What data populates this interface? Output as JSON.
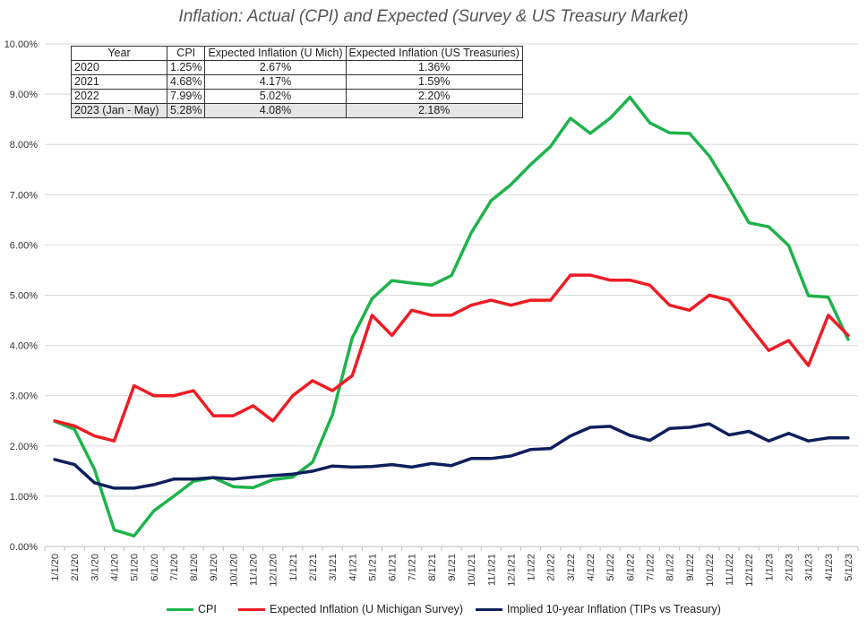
{
  "title": "Inflation: Actual (CPI) and Expected (Survey & US Treasury Market)",
  "table": {
    "headers": [
      "Year",
      "CPI",
      "Expected Inflation (U Mich)",
      "Expected Inflation (US Treasuries)"
    ],
    "rows": [
      [
        "2020",
        "1.25%",
        "2.67%",
        "1.36%"
      ],
      [
        "2021",
        "4.68%",
        "4.17%",
        "1.59%"
      ],
      [
        "2022",
        "7.99%",
        "5.02%",
        "2.20%"
      ],
      [
        "2023 (Jan - May)",
        "5.28%",
        "4.08%",
        "2.18%"
      ]
    ]
  },
  "chart_data": {
    "type": "line",
    "title": "Inflation: Actual (CPI) and Expected (Survey & US Treasury Market)",
    "xlabel": "",
    "ylabel": "",
    "ylim": [
      0,
      10
    ],
    "y_tick_labels": [
      "0.00%",
      "1.00%",
      "2.00%",
      "3.00%",
      "4.00%",
      "5.00%",
      "6.00%",
      "7.00%",
      "8.00%",
      "9.00%",
      "10.00%"
    ],
    "grid": true,
    "legend_position": "bottom",
    "x": [
      "1/1/20",
      "2/1/20",
      "3/1/20",
      "4/1/20",
      "5/1/20",
      "6/1/20",
      "7/1/20",
      "8/1/20",
      "9/1/20",
      "10/1/20",
      "11/1/20",
      "12/1/20",
      "1/1/21",
      "2/1/21",
      "3/1/21",
      "4/1/21",
      "5/1/21",
      "6/1/21",
      "7/1/21",
      "8/1/21",
      "9/1/21",
      "10/1/21",
      "11/1/21",
      "12/1/21",
      "1/1/22",
      "2/1/22",
      "3/1/22",
      "4/1/22",
      "5/1/22",
      "6/1/22",
      "7/1/22",
      "8/1/22",
      "9/1/22",
      "10/1/22",
      "11/1/22",
      "12/1/22",
      "1/1/23",
      "2/1/23",
      "3/1/23",
      "4/1/23",
      "5/1/23"
    ],
    "series": [
      {
        "name": "CPI",
        "color": "#1db34a",
        "values": [
          2.49,
          2.33,
          1.54,
          0.33,
          0.21,
          0.71,
          1.0,
          1.3,
          1.37,
          1.19,
          1.17,
          1.33,
          1.38,
          1.68,
          2.62,
          4.15,
          4.93,
          5.29,
          5.24,
          5.2,
          5.39,
          6.24,
          6.88,
          7.2,
          7.6,
          7.96,
          8.52,
          8.22,
          8.52,
          8.94,
          8.43,
          8.23,
          8.22,
          7.77,
          7.13,
          6.44,
          6.36,
          5.99,
          4.99,
          4.96,
          4.12
        ]
      },
      {
        "name": "Expected Inflation (U Michigan Survey)",
        "color": "#ee1c25",
        "values": [
          2.5,
          2.4,
          2.2,
          2.1,
          3.2,
          3.0,
          3.0,
          3.1,
          2.6,
          2.6,
          2.8,
          2.5,
          3.0,
          3.3,
          3.1,
          3.4,
          4.6,
          4.2,
          4.7,
          4.6,
          4.6,
          4.8,
          4.9,
          4.8,
          4.9,
          4.9,
          5.4,
          5.4,
          5.3,
          5.3,
          5.2,
          4.8,
          4.7,
          5.0,
          4.9,
          4.4,
          3.9,
          4.1,
          3.6,
          4.6,
          4.2
        ]
      },
      {
        "name": "Implied 10-year Inflation (TIPs vs Treasury)",
        "color": "#0d1f5c",
        "values": [
          1.73,
          1.63,
          1.27,
          1.16,
          1.16,
          1.23,
          1.34,
          1.34,
          1.37,
          1.34,
          1.38,
          1.41,
          1.44,
          1.5,
          1.6,
          1.58,
          1.59,
          1.63,
          1.58,
          1.65,
          1.61,
          1.75,
          1.75,
          1.8,
          1.93,
          1.95,
          2.2,
          2.37,
          2.39,
          2.21,
          2.11,
          2.35,
          2.37,
          2.44,
          2.22,
          2.29,
          2.1,
          2.25,
          2.1,
          2.16,
          2.16
        ]
      }
    ]
  }
}
